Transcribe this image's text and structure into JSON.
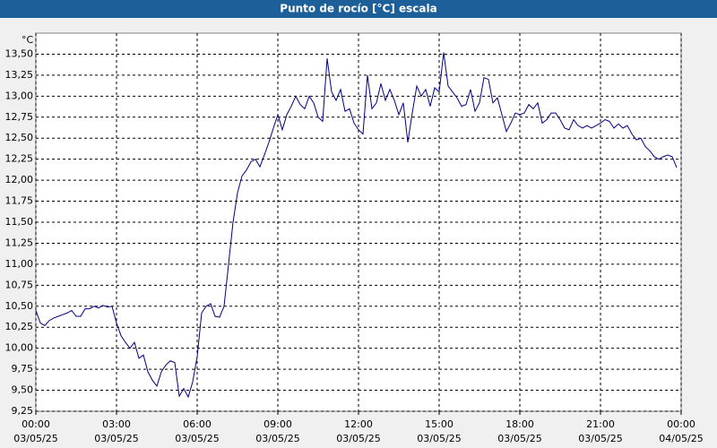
{
  "chart_data": {
    "type": "line",
    "title": "Punto de rocío [°C] escala",
    "ylabel": "°C",
    "x": [
      "03/05/25 00:00",
      "03/05/25 00:10",
      "03/05/25 00:20",
      "03/05/25 00:30",
      "03/05/25 00:40",
      "03/05/25 00:50",
      "03/05/25 01:00",
      "03/05/25 01:10",
      "03/05/25 01:20",
      "03/05/25 01:30",
      "03/05/25 01:40",
      "03/05/25 01:50",
      "03/05/25 02:00",
      "03/05/25 02:10",
      "03/05/25 02:20",
      "03/05/25 02:30",
      "03/05/25 02:40",
      "03/05/25 02:50",
      "03/05/25 03:00",
      "03/05/25 03:10",
      "03/05/25 03:20",
      "03/05/25 03:30",
      "03/05/25 03:40",
      "03/05/25 03:50",
      "03/05/25 04:00",
      "03/05/25 04:10",
      "03/05/25 04:20",
      "03/05/25 04:30",
      "03/05/25 04:40",
      "03/05/25 04:50",
      "03/05/25 05:00",
      "03/05/25 05:10",
      "03/05/25 05:20",
      "03/05/25 05:30",
      "03/05/25 05:40",
      "03/05/25 05:50",
      "03/05/25 06:00",
      "03/05/25 06:10",
      "03/05/25 06:20",
      "03/05/25 06:30",
      "03/05/25 06:40",
      "03/05/25 06:50",
      "03/05/25 07:00",
      "03/05/25 07:10",
      "03/05/25 07:20",
      "03/05/25 07:30",
      "03/05/25 07:40",
      "03/05/25 07:50",
      "03/05/25 08:00",
      "03/05/25 08:10",
      "03/05/25 08:20",
      "03/05/25 08:30",
      "03/05/25 08:40",
      "03/05/25 08:50",
      "03/05/25 09:00",
      "03/05/25 09:10",
      "03/05/25 09:20",
      "03/05/25 09:30",
      "03/05/25 09:40",
      "03/05/25 09:50",
      "03/05/25 10:00",
      "03/05/25 10:10",
      "03/05/25 10:20",
      "03/05/25 10:30",
      "03/05/25 10:40",
      "03/05/25 10:50",
      "03/05/25 11:00",
      "03/05/25 11:10",
      "03/05/25 11:20",
      "03/05/25 11:30",
      "03/05/25 11:40",
      "03/05/25 11:50",
      "03/05/25 12:00",
      "03/05/25 12:10",
      "03/05/25 12:20",
      "03/05/25 12:30",
      "03/05/25 12:40",
      "03/05/25 12:50",
      "03/05/25 13:00",
      "03/05/25 13:10",
      "03/05/25 13:20",
      "03/05/25 13:30",
      "03/05/25 13:40",
      "03/05/25 13:50",
      "03/05/25 14:00",
      "03/05/25 14:10",
      "03/05/25 14:20",
      "03/05/25 14:30",
      "03/05/25 14:40",
      "03/05/25 14:50",
      "03/05/25 15:00",
      "03/05/25 15:10",
      "03/05/25 15:20",
      "03/05/25 15:30",
      "03/05/25 15:40",
      "03/05/25 15:50",
      "03/05/25 16:00",
      "03/05/25 16:10",
      "03/05/25 16:20",
      "03/05/25 16:30",
      "03/05/25 16:40",
      "03/05/25 16:50",
      "03/05/25 17:00",
      "03/05/25 17:10",
      "03/05/25 17:20",
      "03/05/25 17:30",
      "03/05/25 17:40",
      "03/05/25 17:50",
      "03/05/25 18:00",
      "03/05/25 18:10",
      "03/05/25 18:20",
      "03/05/25 18:30",
      "03/05/25 18:40",
      "03/05/25 18:50",
      "03/05/25 19:00",
      "03/05/25 19:10",
      "03/05/25 19:20",
      "03/05/25 19:30",
      "03/05/25 19:40",
      "03/05/25 19:50",
      "03/05/25 20:00",
      "03/05/25 20:10",
      "03/05/25 20:20",
      "03/05/25 20:30",
      "03/05/25 20:40",
      "03/05/25 20:50",
      "03/05/25 21:00",
      "03/05/25 21:10",
      "03/05/25 21:20",
      "03/05/25 21:30",
      "03/05/25 21:40",
      "03/05/25 21:50",
      "03/05/25 22:00",
      "03/05/25 22:10",
      "03/05/25 22:20",
      "03/05/25 22:30",
      "03/05/25 22:40",
      "03/05/25 22:50",
      "03/05/25 23:00",
      "03/05/25 23:10",
      "03/05/25 23:20",
      "03/05/25 23:30",
      "03/05/25 23:40",
      "03/05/25 23:50"
    ],
    "series": [
      {
        "name": "Punto de rocío",
        "color": "#000080",
        "values": [
          10.45,
          10.3,
          10.27,
          10.33,
          10.36,
          10.38,
          10.4,
          10.42,
          10.45,
          10.38,
          10.38,
          10.47,
          10.47,
          10.5,
          10.48,
          10.51,
          10.49,
          10.5,
          10.3,
          10.15,
          10.07,
          10.0,
          10.07,
          9.88,
          9.92,
          9.72,
          9.62,
          9.55,
          9.72,
          9.8,
          9.85,
          9.83,
          9.43,
          9.52,
          9.42,
          9.6,
          9.9,
          10.42,
          10.5,
          10.53,
          10.38,
          10.37,
          10.5,
          11.0,
          11.5,
          11.85,
          12.05,
          12.12,
          12.22,
          12.25,
          12.16,
          12.3,
          12.45,
          12.62,
          12.78,
          12.6,
          12.78,
          12.88,
          13.0,
          12.9,
          12.85,
          13.0,
          12.92,
          12.75,
          12.7,
          13.45,
          13.05,
          12.95,
          13.08,
          12.82,
          12.85,
          12.68,
          12.6,
          12.55,
          13.25,
          12.85,
          12.92,
          13.15,
          12.95,
          13.08,
          12.95,
          12.78,
          12.92,
          12.45,
          12.8,
          13.12,
          13.0,
          13.08,
          12.88,
          13.1,
          13.05,
          13.52,
          13.12,
          13.05,
          12.98,
          12.88,
          12.9,
          13.08,
          12.82,
          12.92,
          13.22,
          13.2,
          12.92,
          12.98,
          12.78,
          12.58,
          12.68,
          12.8,
          12.78,
          12.8,
          12.9,
          12.85,
          12.92,
          12.68,
          12.72,
          12.8,
          12.8,
          12.72,
          12.62,
          12.6,
          12.72,
          12.65,
          12.62,
          12.65,
          12.62,
          12.65,
          12.68,
          12.72,
          12.7,
          12.62,
          12.67,
          12.62,
          12.65,
          12.55,
          12.48,
          12.5,
          12.4,
          12.35,
          12.28,
          12.25,
          12.28,
          12.3,
          12.28,
          12.15
        ]
      }
    ],
    "xlim": [
      "03/05/25 00:00",
      "04/05/25 00:00"
    ],
    "xticks": [
      {
        "value": "03/05/25 00:00",
        "label": [
          "00:00",
          "03/05/25"
        ]
      },
      {
        "value": "03/05/25 03:00",
        "label": [
          "03:00",
          "03/05/25"
        ]
      },
      {
        "value": "03/05/25 06:00",
        "label": [
          "06:00",
          "03/05/25"
        ]
      },
      {
        "value": "03/05/25 09:00",
        "label": [
          "09:00",
          "03/05/25"
        ]
      },
      {
        "value": "03/05/25 12:00",
        "label": [
          "12:00",
          "03/05/25"
        ]
      },
      {
        "value": "03/05/25 15:00",
        "label": [
          "15:00",
          "03/05/25"
        ]
      },
      {
        "value": "03/05/25 18:00",
        "label": [
          "18:00",
          "03/05/25"
        ]
      },
      {
        "value": "03/05/25 21:00",
        "label": [
          "21:00",
          "03/05/25"
        ]
      },
      {
        "value": "04/05/25 00:00",
        "label": [
          "00:00",
          "04/05/25"
        ]
      }
    ],
    "ylim": [
      9.25,
      13.75
    ],
    "yticks": [
      {
        "value": 9.25,
        "label": "9,25"
      },
      {
        "value": 9.5,
        "label": "9,50"
      },
      {
        "value": 9.75,
        "label": "9,75"
      },
      {
        "value": 10,
        "label": "10,00"
      },
      {
        "value": 10.25,
        "label": "10,25"
      },
      {
        "value": 10.5,
        "label": "10,50"
      },
      {
        "value": 10.75,
        "label": "10,75"
      },
      {
        "value": 11,
        "label": "11,00"
      },
      {
        "value": 11.25,
        "label": "11,25"
      },
      {
        "value": 11.5,
        "label": "11,50"
      },
      {
        "value": 11.75,
        "label": "11,75"
      },
      {
        "value": 12,
        "label": "12,00"
      },
      {
        "value": 12.25,
        "label": "12,25"
      },
      {
        "value": 12.5,
        "label": "12,50"
      },
      {
        "value": 12.75,
        "label": "12,75"
      },
      {
        "value": 13,
        "label": "13,00"
      },
      {
        "value": 13.25,
        "label": "13,25"
      },
      {
        "value": 13.5,
        "label": "13,50"
      }
    ],
    "grid": true
  }
}
